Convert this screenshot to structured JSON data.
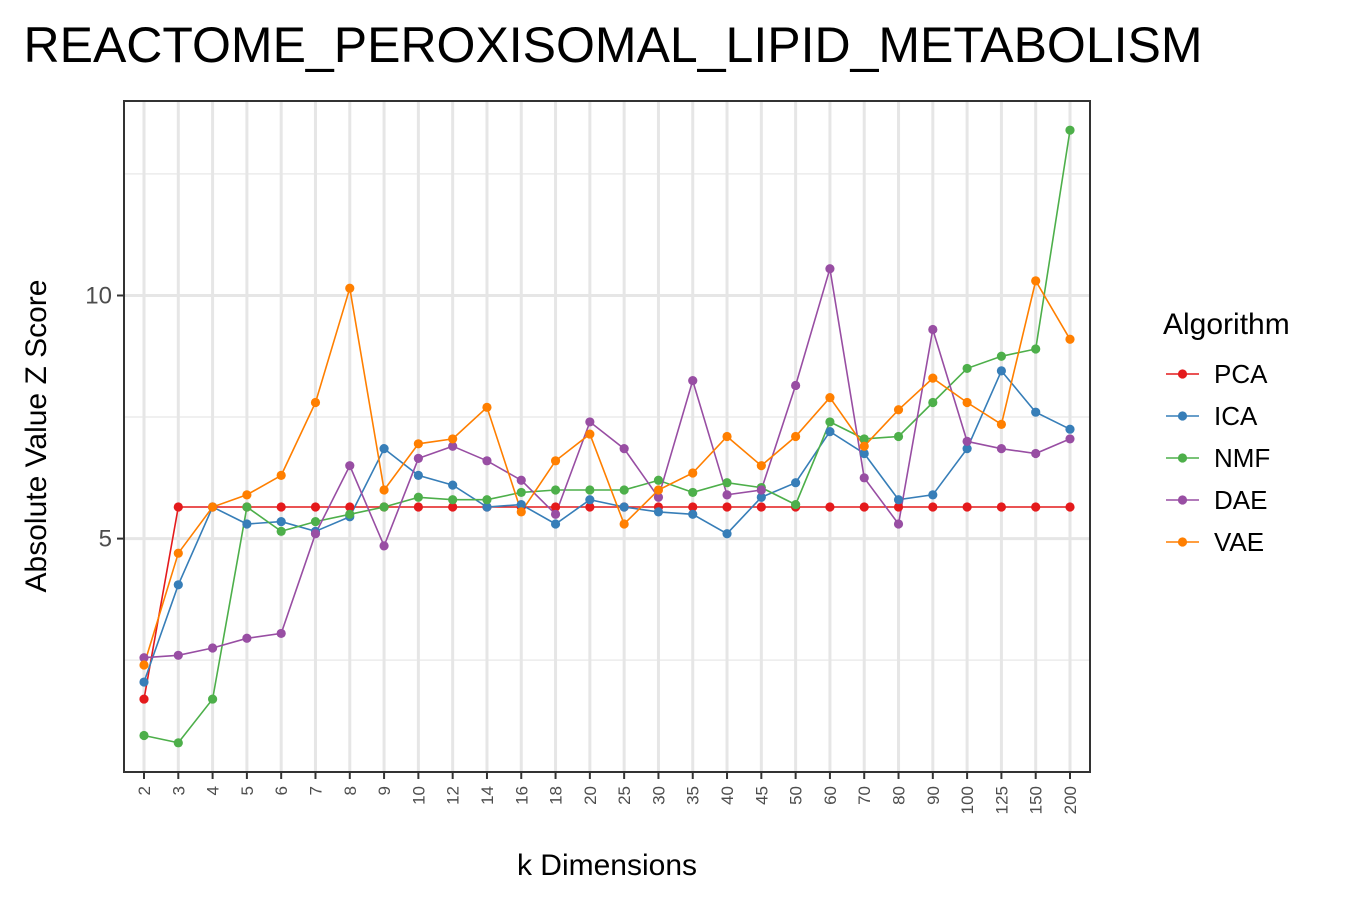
{
  "chart_data": {
    "type": "line",
    "title": "REACTOME_PEROXISOMAL_LIPID_METABOLISM",
    "xlabel": "k Dimensions",
    "ylabel": "Absolute Value Z Score",
    "categories": [
      "2",
      "3",
      "4",
      "5",
      "6",
      "7",
      "8",
      "9",
      "10",
      "12",
      "14",
      "16",
      "18",
      "20",
      "25",
      "30",
      "35",
      "40",
      "45",
      "50",
      "60",
      "70",
      "80",
      "90",
      "100",
      "125",
      "150",
      "200"
    ],
    "ylim": [
      0.2,
      14.0
    ],
    "yticks": [
      5,
      10
    ],
    "grid": true,
    "legend_title": "Algorithm",
    "legend_position": "right",
    "series": [
      {
        "name": "PCA",
        "color": "#e41a1c",
        "values": [
          1.7,
          5.65,
          5.65,
          5.65,
          5.65,
          5.65,
          5.65,
          5.65,
          5.65,
          5.65,
          5.65,
          5.65,
          5.65,
          5.65,
          5.65,
          5.65,
          5.65,
          5.65,
          5.65,
          5.65,
          5.65,
          5.65,
          5.65,
          5.65,
          5.65,
          5.65,
          5.65,
          5.65
        ]
      },
      {
        "name": "ICA",
        "color": "#377eb8",
        "values": [
          2.05,
          4.05,
          5.65,
          5.3,
          5.35,
          5.15,
          5.45,
          6.85,
          6.3,
          6.1,
          5.65,
          5.7,
          5.3,
          5.8,
          5.65,
          5.55,
          5.5,
          5.1,
          5.85,
          6.15,
          7.2,
          6.75,
          5.8,
          5.9,
          6.85,
          8.45,
          7.6,
          7.25
        ]
      },
      {
        "name": "NMF",
        "color": "#4daf4a",
        "values": [
          0.95,
          0.8,
          1.7,
          5.65,
          5.15,
          5.35,
          5.5,
          5.65,
          5.85,
          5.8,
          5.8,
          5.95,
          6.0,
          6.0,
          6.0,
          6.2,
          5.95,
          6.15,
          6.05,
          5.7,
          7.4,
          7.05,
          7.1,
          7.8,
          8.5,
          8.75,
          8.9,
          13.4
        ]
      },
      {
        "name": "DAE",
        "color": "#984ea3",
        "values": [
          2.55,
          2.6,
          2.75,
          2.95,
          3.05,
          5.1,
          6.5,
          4.85,
          6.65,
          6.9,
          6.6,
          6.2,
          5.5,
          7.4,
          6.85,
          5.85,
          8.25,
          5.9,
          6.0,
          8.15,
          10.55,
          6.25,
          5.3,
          9.3,
          7.0,
          6.85,
          6.75,
          7.05
        ]
      },
      {
        "name": "VAE",
        "color": "#ff7f00",
        "values": [
          2.4,
          4.7,
          5.65,
          5.9,
          6.3,
          7.8,
          10.15,
          6.0,
          6.95,
          7.05,
          7.7,
          5.55,
          6.6,
          7.15,
          5.3,
          6.0,
          6.35,
          7.1,
          6.5,
          7.1,
          7.9,
          6.9,
          7.65,
          8.3,
          7.8,
          7.35,
          10.3,
          9.1
        ]
      }
    ]
  }
}
